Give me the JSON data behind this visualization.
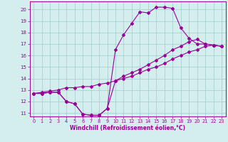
{
  "xlabel": "Windchill (Refroidissement éolien,°C)",
  "xlim": [
    -0.5,
    23.5
  ],
  "ylim": [
    10.7,
    20.7
  ],
  "xticks": [
    0,
    1,
    2,
    3,
    4,
    5,
    6,
    7,
    8,
    9,
    10,
    11,
    12,
    13,
    14,
    15,
    16,
    17,
    18,
    19,
    20,
    21,
    22,
    23
  ],
  "yticks": [
    11,
    12,
    13,
    14,
    15,
    16,
    17,
    18,
    19,
    20
  ],
  "background_color": "#d4eeee",
  "grid_color": "#a0cccc",
  "line_color": "#990099",
  "curve1_y": [
    12.7,
    12.7,
    12.8,
    12.8,
    12.0,
    11.8,
    10.9,
    10.8,
    10.8,
    11.4,
    16.5,
    17.8,
    18.8,
    19.8,
    19.7,
    20.2,
    20.2,
    20.1,
    18.4,
    17.5,
    17.0,
    17.0,
    16.9,
    16.8
  ],
  "curve2_y": [
    12.7,
    12.7,
    12.8,
    12.8,
    12.0,
    11.8,
    10.9,
    10.8,
    10.8,
    11.4,
    13.8,
    14.2,
    14.5,
    14.8,
    15.2,
    15.6,
    16.0,
    16.5,
    16.8,
    17.2,
    17.4,
    17.0,
    16.9,
    16.8
  ],
  "curve3_y": [
    12.7,
    12.8,
    12.9,
    13.0,
    13.2,
    13.2,
    13.3,
    13.3,
    13.5,
    13.6,
    13.8,
    14.0,
    14.2,
    14.5,
    14.8,
    15.0,
    15.3,
    15.7,
    16.0,
    16.3,
    16.5,
    16.8,
    16.9,
    16.8
  ]
}
